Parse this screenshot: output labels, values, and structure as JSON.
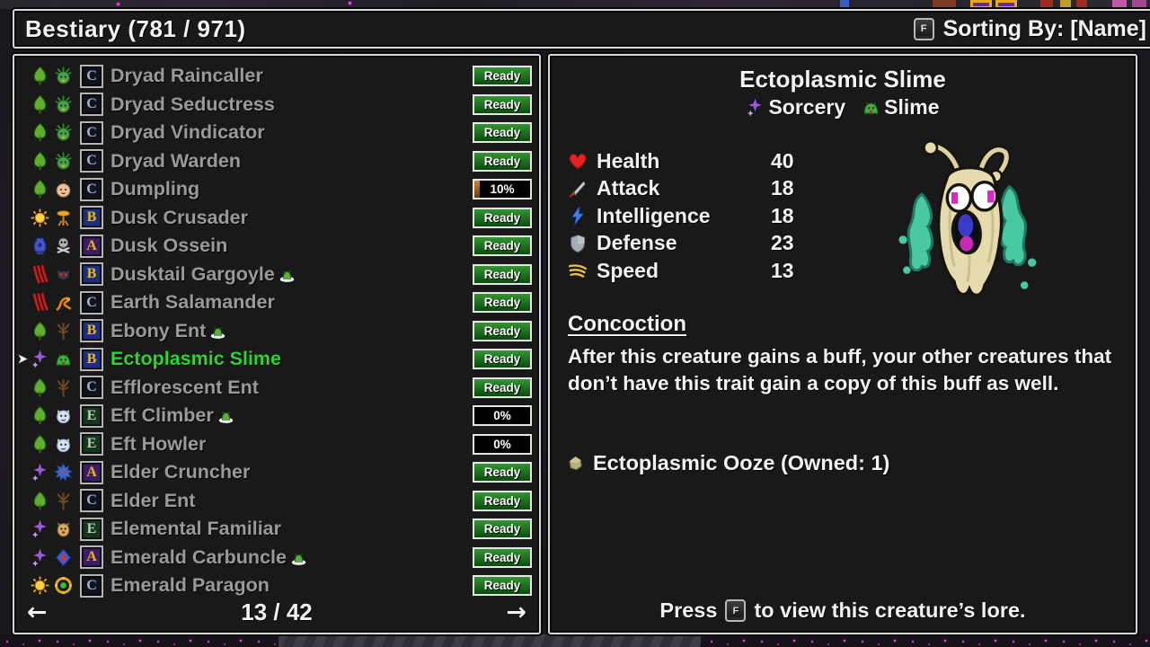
{
  "colors": {
    "selected_green": "#2bd52b",
    "ready_top": "#349434",
    "ready_bottom": "#0a4d0c",
    "list_text": "#9a9a9a",
    "panel_border": "#d8d8d8"
  },
  "title_bar": {
    "title": "Bestiary (781 / 971)",
    "sort_key": "F",
    "sort_label": "Sorting By: [Name]"
  },
  "list": {
    "rows": [
      {
        "class_icon": "nature",
        "race_icon": "dryad",
        "grade": "C",
        "name": "Dryad Raincaller",
        "status": "Ready",
        "owned": false,
        "selected": false
      },
      {
        "class_icon": "nature",
        "race_icon": "dryad",
        "grade": "C",
        "name": "Dryad Seductress",
        "status": "Ready",
        "owned": false,
        "selected": false
      },
      {
        "class_icon": "nature",
        "race_icon": "dryad",
        "grade": "C",
        "name": "Dryad Vindicator",
        "status": "Ready",
        "owned": false,
        "selected": false
      },
      {
        "class_icon": "nature",
        "race_icon": "dryad",
        "grade": "C",
        "name": "Dryad Warden",
        "status": "Ready",
        "owned": false,
        "selected": false
      },
      {
        "class_icon": "nature",
        "race_icon": "dumpling",
        "grade": "C",
        "name": "Dumpling",
        "status": "10%",
        "owned": false,
        "selected": false
      },
      {
        "class_icon": "life",
        "race_icon": "crusader",
        "grade": "B",
        "name": "Dusk Crusader",
        "status": "Ready",
        "owned": false,
        "selected": false
      },
      {
        "class_icon": "death",
        "race_icon": "ossein",
        "grade": "A",
        "name": "Dusk Ossein",
        "status": "Ready",
        "owned": false,
        "selected": false
      },
      {
        "class_icon": "chaos",
        "race_icon": "gargoyle",
        "grade": "B",
        "name": "Dusktail Gargoyle",
        "status": "Ready",
        "owned": true,
        "selected": false
      },
      {
        "class_icon": "chaos",
        "race_icon": "salamander",
        "grade": "C",
        "name": "Earth Salamander",
        "status": "Ready",
        "owned": false,
        "selected": false
      },
      {
        "class_icon": "nature",
        "race_icon": "ent",
        "grade": "B",
        "name": "Ebony Ent",
        "status": "Ready",
        "owned": true,
        "selected": false
      },
      {
        "class_icon": "sorcery",
        "race_icon": "slime",
        "grade": "B",
        "name": "Ectoplasmic Slime",
        "status": "Ready",
        "owned": false,
        "selected": true
      },
      {
        "class_icon": "nature",
        "race_icon": "ent",
        "grade": "C",
        "name": "Efflorescent Ent",
        "status": "Ready",
        "owned": false,
        "selected": false
      },
      {
        "class_icon": "nature",
        "race_icon": "eft",
        "grade": "E",
        "name": "Eft Climber",
        "status": "0%",
        "owned": true,
        "selected": false
      },
      {
        "class_icon": "nature",
        "race_icon": "eft",
        "grade": "E",
        "name": "Eft Howler",
        "status": "0%",
        "owned": false,
        "selected": false
      },
      {
        "class_icon": "sorcery",
        "race_icon": "cruncher",
        "grade": "A",
        "name": "Elder Cruncher",
        "status": "Ready",
        "owned": false,
        "selected": false
      },
      {
        "class_icon": "nature",
        "race_icon": "ent",
        "grade": "C",
        "name": "Elder Ent",
        "status": "Ready",
        "owned": false,
        "selected": false
      },
      {
        "class_icon": "sorcery",
        "race_icon": "familiar",
        "grade": "E",
        "name": "Elemental Familiar",
        "status": "Ready",
        "owned": false,
        "selected": false
      },
      {
        "class_icon": "sorcery",
        "race_icon": "carbuncle",
        "grade": "A",
        "name": "Emerald Carbuncle",
        "status": "Ready",
        "owned": true,
        "selected": false
      },
      {
        "class_icon": "life",
        "race_icon": "paragon",
        "grade": "C",
        "name": "Emerald Paragon",
        "status": "Ready",
        "owned": false,
        "selected": false
      }
    ],
    "pagination": {
      "prev": "←",
      "page": "13 / 42",
      "next": "→"
    }
  },
  "detail": {
    "name": "Ectoplasmic Slime",
    "class_icon": "sorcery",
    "class_name": "Sorcery",
    "race_icon": "slime",
    "race_name": "Slime",
    "stats": [
      {
        "icon": "heart",
        "label": "Health",
        "value": "40"
      },
      {
        "icon": "sword",
        "label": "Attack",
        "value": "18"
      },
      {
        "icon": "lightning",
        "label": "Intelligence",
        "value": "18"
      },
      {
        "icon": "shield",
        "label": "Defense",
        "value": "23"
      },
      {
        "icon": "feather",
        "label": "Speed",
        "value": "13"
      }
    ],
    "trait_title": "Concoction",
    "trait_description": "After this creature gains a buff, your other creatures that don’t have this trait gain a copy of this buff as well.",
    "material": {
      "icon": "ooze",
      "label": "Ectoplasmic Ooze (Owned: 1)"
    },
    "footer": {
      "pre": "Press",
      "key": "F",
      "post": "to view this creature’s lore."
    }
  }
}
